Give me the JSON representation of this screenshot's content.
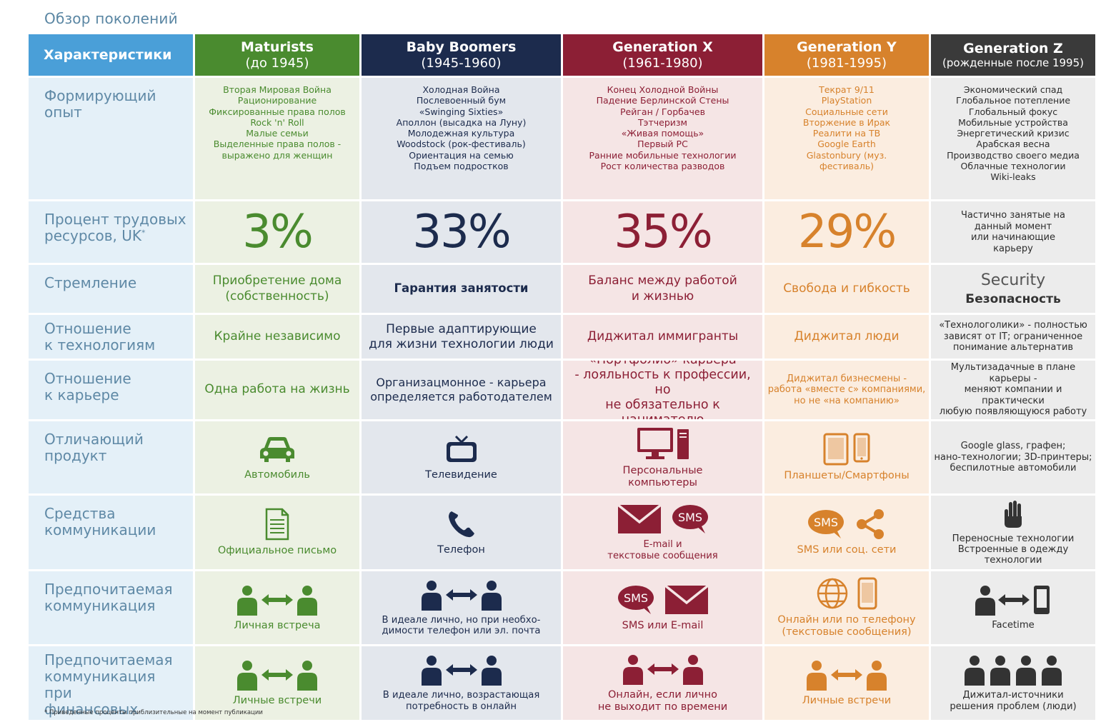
{
  "title": "Обзор поколений",
  "header": {
    "characteristics": "Характеристики",
    "generations": [
      {
        "name": "Maturists",
        "sub": "(до 1945)"
      },
      {
        "name": "Baby Boomers",
        "sub": "(1945-1960)"
      },
      {
        "name": "Generation X",
        "sub": "(1961-1980)"
      },
      {
        "name": "Generation Y",
        "sub": "(1981-1995)"
      },
      {
        "name": "Generation Z",
        "sub": "(рожденные после 1995)"
      }
    ]
  },
  "rows": {
    "formative": {
      "label": "Формирующий\nопыт",
      "maturists": "Вторая Мировая Война\nРационирование\nФиксированные права полов\nRock 'n' Roll\nМалые семьи\nВыделенные права полов -\nвыражено для женщин",
      "boomers": "Холодная Война\nПослевоенный бум\n«Swinging Sixties»\nАполлон (высадка на Луну)\nМолодежная культура\nWoodstock (рок-фестиваль)\nОриентация на семью\nПодъем подростков",
      "genx": "Конец Холодной Войны\nПадение Берлинской Стены\nРейган / Горбачев\nТэтчеризм\n«Живая помощь»\nПервый PC\nРанние мобильные технологии\nРост количества разводов",
      "geny": "Текрат 9/11\nPlayStation\nСоциальные сети\nВторжение в Ирак\nРеалити на ТВ\nGoogle Earth\nGlastonbury (муз.\nфестиваль)",
      "genz": "Экономический спад\nГлобальное потепление\nГлобальный фокус\nМобильные устройства\nЭнергетический кризис\nАрабская весна\nПроизводство своего медиа\nОблачные технологии\nWiki-leaks"
    },
    "workforce": {
      "label": "Процент трудовых\nресурсов, UK",
      "label_mark": "*",
      "maturists": "3%",
      "boomers": "33%",
      "genx": "35%",
      "geny": "29%",
      "genz": "Частично занятые на\nданный момент\nили начинающие\nкарьеру"
    },
    "aspiration": {
      "label": "Стремление",
      "maturists": "Приобретение дома\n(собственность)",
      "boomers": "Гарантия занятости",
      "genx": "Баланс между работой\nи жизнью",
      "geny": "Свобода и гибкость",
      "genz_en": "Security",
      "genz_ru": "Безопасность"
    },
    "technology": {
      "label": "Отношение\nк технологиям",
      "maturists": "Крайне независимо",
      "boomers": "Первые адаптирующие\nдля жизни технологии люди",
      "genx": "Диджитал иммигранты",
      "geny": "Диджитал люди",
      "genz": "«Технологолики» - полностью\nзависят от IT; ограниченное\nпонимание альтернатив"
    },
    "career": {
      "label": "Отношение\nк карьере",
      "maturists": "Одна работа на жизнь",
      "boomers": "Организацмонное - карьера\nопределяется работодателем",
      "genx": "«Портфолио» карьера\n- лояльность к профессии, но\nне обязательно к нанимателю",
      "geny": "Диджитал бизнесмены -\nработа «вместе с» компаниями,\nно не «на компанию»",
      "genz": "Мультизадачные в плане карьеры -\nменяют компании и практически\nлюбую появляющуюся работу"
    },
    "product": {
      "label": "Отличающий\nпродукт",
      "maturists": "Автомобиль",
      "boomers": "Телевидение",
      "genx": "Персональные\nкомпьютеры",
      "geny": "Планшеты/Смартфоны",
      "genz": "Google glass, графен;\nнано-технологии; 3D-принтеры;\nбеспилотные автомобили"
    },
    "communication": {
      "label": "Средства\nкоммуникации",
      "maturists": "Официальное письмо",
      "boomers": "Телефон",
      "genx": "E-mail и\nтекстовые сообщения",
      "geny": "SMS или соц. сети",
      "genz": "Переносные технологии\nВстроенные в одежду\nтехнологии",
      "sms_text": "SMS"
    },
    "pref_comm": {
      "label": "Предпочитаемая\nкоммуникация",
      "maturists": "Личная встреча",
      "boomers": "В идеале лично, но при необхо-\nдимости телефон или эл. почта",
      "genx": "SMS или E-mail",
      "geny": "Онлайн или по телефону\n(текстовые сообщения)",
      "genz": "Facetime"
    },
    "pref_fin": {
      "label": "Предпочитаемая\nкоммуникация при\nфинансовых\nрешениях",
      "maturists": "Личные встречи",
      "boomers": "В идеале лично, возрастающая\nпотребность в онлайн",
      "genx": "Онлайн, если лично\nне выходит по времени",
      "geny": "Личные встречи",
      "genz": "Дижитал-источники\nрешения проблем (люди)"
    }
  },
  "footnote": "* Приведенные проценты приблизительные на момент публикации",
  "colors": {
    "characteristics": "#4a9fd8",
    "maturists": "#4a8b2f",
    "boomers": "#1c2b4d",
    "genx": "#8c1f35",
    "geny": "#d7822c",
    "genz": "#3a3a3a"
  },
  "icons": {
    "product": [
      "car-icon",
      "tv-icon",
      "computer-icon",
      "tablet-phone-icon"
    ],
    "communication": [
      "letter-icon",
      "phone-handset-icon",
      "envelope-icon",
      "sms-bubble-icon",
      "share-icon",
      "glove-icon"
    ],
    "pref_comm": [
      "people-meeting-icon",
      "globe-icon",
      "smartphone-icon",
      "person-to-phone-icon"
    ],
    "pref_fin": [
      "people-meeting-icon",
      "group-people-icon"
    ]
  }
}
